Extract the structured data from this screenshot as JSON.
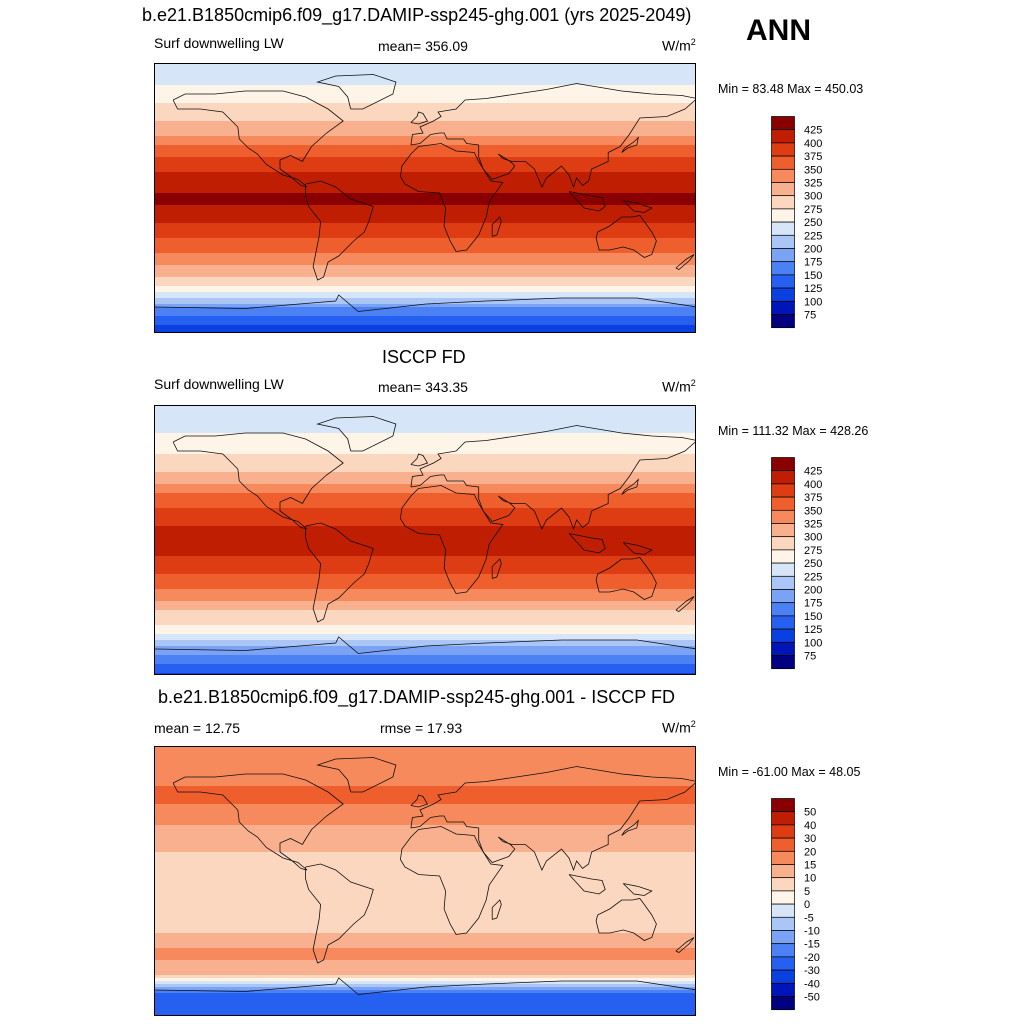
{
  "season": "ANN",
  "panels": [
    {
      "title": "b.e21.B1850cmip6.f09_g17.DAMIP-ssp245-ghg.001 (yrs 2025-2049)",
      "left_label": "Surf downwelling LW",
      "center_label": "mean= 356.09",
      "units": "W/m",
      "units_sup": "2",
      "minmax": "Min =  83.48 Max = 450.03"
    },
    {
      "title": "ISCCP FD",
      "left_label": "Surf downwelling LW",
      "center_label": "mean= 343.35",
      "units": "W/m",
      "units_sup": "2",
      "minmax": "Min = 111.32 Max = 428.26"
    },
    {
      "title": "b.e21.B1850cmip6.f09_g17.DAMIP-ssp245-ghg.001 - ISCCP FD",
      "left_label": "mean =  12.75",
      "center_label": "rmse =  17.93",
      "units": "W/m",
      "units_sup": "2",
      "minmax": "Min = -61.00 Max =  48.05"
    }
  ],
  "chart_data": [
    {
      "type": "heatmap",
      "title": "b.e21.B1850cmip6.f09_g17.DAMIP-ssp245-ghg.001 (yrs 2025-2049)",
      "variable": "Surf downwelling LW",
      "units": "W/m2",
      "mean": 356.09,
      "min": 83.48,
      "max": 450.03,
      "colorbar_levels": [
        75,
        100,
        125,
        150,
        175,
        200,
        225,
        250,
        275,
        300,
        325,
        350,
        375,
        400,
        425
      ],
      "colorbar_colors": [
        "#000080",
        "#0015b8",
        "#0a3fe0",
        "#2560f0",
        "#4c80f5",
        "#7aa3f6",
        "#a9c6f6",
        "#d6e6f8",
        "#fff4e8",
        "#fcd7c0",
        "#f9b08e",
        "#f68a5d",
        "#ef5f2e",
        "#de3c13",
        "#bf1e02",
        "#8a0000"
      ],
      "latitude_profile": [
        {
          "lat": 90,
          "value": 225
        },
        {
          "lat": 75,
          "value": 250
        },
        {
          "lat": 60,
          "value": 285
        },
        {
          "lat": 45,
          "value": 315
        },
        {
          "lat": 30,
          "value": 370
        },
        {
          "lat": 15,
          "value": 405
        },
        {
          "lat": 0,
          "value": 430
        },
        {
          "lat": -15,
          "value": 405
        },
        {
          "lat": -30,
          "value": 365
        },
        {
          "lat": -45,
          "value": 320
        },
        {
          "lat": -60,
          "value": 270
        },
        {
          "lat": -75,
          "value": 160
        },
        {
          "lat": -90,
          "value": 100
        }
      ]
    },
    {
      "type": "heatmap",
      "title": "ISCCP FD",
      "variable": "Surf downwelling LW",
      "units": "W/m2",
      "mean": 343.35,
      "min": 111.32,
      "max": 428.26,
      "colorbar_levels": [
        75,
        100,
        125,
        150,
        175,
        200,
        225,
        250,
        275,
        300,
        325,
        350,
        375,
        400,
        425
      ],
      "colorbar_colors": [
        "#000080",
        "#0015b8",
        "#0a3fe0",
        "#2560f0",
        "#4c80f5",
        "#7aa3f6",
        "#a9c6f6",
        "#d6e6f8",
        "#fff4e8",
        "#fcd7c0",
        "#f9b08e",
        "#f68a5d",
        "#ef5f2e",
        "#de3c13",
        "#bf1e02",
        "#8a0000"
      ],
      "latitude_profile": [
        {
          "lat": 90,
          "value": 235
        },
        {
          "lat": 75,
          "value": 245
        },
        {
          "lat": 60,
          "value": 270
        },
        {
          "lat": 45,
          "value": 300
        },
        {
          "lat": 30,
          "value": 355
        },
        {
          "lat": 15,
          "value": 395
        },
        {
          "lat": 0,
          "value": 410
        },
        {
          "lat": -15,
          "value": 395
        },
        {
          "lat": -30,
          "value": 355
        },
        {
          "lat": -45,
          "value": 305
        },
        {
          "lat": -60,
          "value": 260
        },
        {
          "lat": -75,
          "value": 175
        },
        {
          "lat": -90,
          "value": 120
        }
      ]
    },
    {
      "type": "heatmap",
      "title": "b.e21.B1850cmip6.f09_g17.DAMIP-ssp245-ghg.001 - ISCCP FD",
      "units": "W/m2",
      "mean": 12.75,
      "rmse": 17.93,
      "min": -61.0,
      "max": 48.05,
      "colorbar_levels": [
        -50,
        -40,
        -30,
        -20,
        -15,
        -10,
        -5,
        0,
        5,
        10,
        15,
        20,
        30,
        40,
        50
      ],
      "colorbar_colors": [
        "#000080",
        "#0015b8",
        "#0a3fe0",
        "#2560f0",
        "#4c80f5",
        "#7aa3f6",
        "#a9c6f6",
        "#d6e6f8",
        "#fff4e8",
        "#fcd7c0",
        "#f9b08e",
        "#f68a5d",
        "#ef5f2e",
        "#de3c13",
        "#bf1e02",
        "#8a0000"
      ],
      "latitude_profile": [
        {
          "lat": 90,
          "value": 18
        },
        {
          "lat": 75,
          "value": 15
        },
        {
          "lat": 60,
          "value": 22
        },
        {
          "lat": 45,
          "value": 18
        },
        {
          "lat": 30,
          "value": 12
        },
        {
          "lat": 15,
          "value": 9
        },
        {
          "lat": 0,
          "value": 6
        },
        {
          "lat": -15,
          "value": 9
        },
        {
          "lat": -30,
          "value": 8
        },
        {
          "lat": -45,
          "value": 16
        },
        {
          "lat": -60,
          "value": 14
        },
        {
          "lat": -75,
          "value": -22
        },
        {
          "lat": -90,
          "value": -30
        }
      ]
    }
  ]
}
